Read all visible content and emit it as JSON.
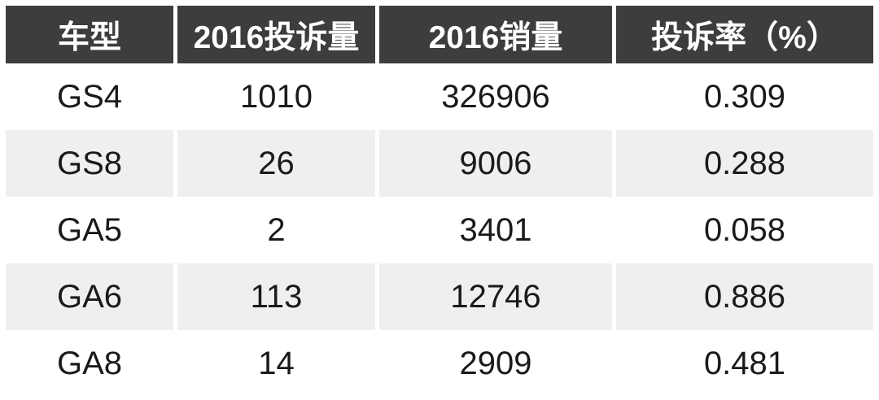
{
  "colors": {
    "header_bg": "#3d3d3d",
    "header_text": "#ffffff",
    "row_bg": "#ffffff",
    "row_alt_bg": "#efefef",
    "body_text": "#1a1a1a"
  },
  "chart_data": {
    "type": "table",
    "title": "",
    "columns": [
      "车型",
      "2016投诉量",
      "2016销量",
      "投诉率（%）"
    ],
    "rows": [
      [
        "GS4",
        "1010",
        "326906",
        "0.309"
      ],
      [
        "GS8",
        "26",
        "9006",
        "0.288"
      ],
      [
        "GA5",
        "2",
        "3401",
        "0.058"
      ],
      [
        "GA6",
        "113",
        "12746",
        "0.886"
      ],
      [
        "GA8",
        "14",
        "2909",
        "0.481"
      ]
    ],
    "layout_hints": {
      "header_style": "dark-bar",
      "row_striping": "white-and-light-gray",
      "column_gaps": "white 5px vertical dividers",
      "text_align": "center"
    }
  }
}
